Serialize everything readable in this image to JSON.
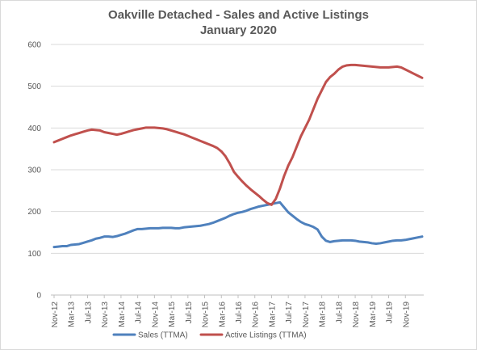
{
  "chart_data": {
    "type": "line",
    "title": "Oakville Detached - Sales and Active Listings",
    "subtitle": "January 2020",
    "xlabel": "",
    "ylabel": "",
    "ylim": [
      0,
      600
    ],
    "y_ticks": [
      0,
      100,
      200,
      300,
      400,
      500,
      600
    ],
    "x_tick_labels": [
      "Nov-12",
      "Mar-13",
      "Jul-13",
      "Nov-13",
      "Mar-14",
      "Jul-14",
      "Nov-14",
      "Mar-15",
      "Jul-15",
      "Nov-15",
      "Mar-16",
      "Jul-16",
      "Nov-16",
      "Mar-17",
      "Jul-17",
      "Nov-17",
      "Mar-18",
      "Jul-18",
      "Nov-18",
      "Mar-19",
      "Jul-19",
      "Nov-19"
    ],
    "grid": "horizontal",
    "legend_position": "bottom",
    "series": [
      {
        "name": "Sales (TTMA)",
        "color": "#4F81BD",
        "values": [
          115,
          116,
          117,
          117,
          120,
          121,
          122,
          125,
          128,
          131,
          135,
          137,
          140,
          140,
          139,
          141,
          144,
          147,
          151,
          155,
          158,
          158,
          159,
          160,
          160,
          160,
          161,
          161,
          161,
          160,
          160,
          162,
          163,
          164,
          165,
          166,
          168,
          170,
          173,
          177,
          181,
          185,
          190,
          194,
          197,
          199,
          202,
          206,
          209,
          212,
          214,
          216,
          218,
          220,
          222,
          210,
          198,
          190,
          182,
          175,
          170,
          167,
          163,
          157,
          140,
          130,
          127,
          129,
          130,
          131,
          131,
          131,
          130,
          128,
          127,
          126,
          124,
          123,
          124,
          126,
          128,
          130,
          131,
          131,
          132,
          134,
          136,
          138,
          140
        ],
        "labels": []
      },
      {
        "name": "Active Listings (TTMA)",
        "color": "#C0504D",
        "values": [
          366,
          370,
          374,
          378,
          382,
          385,
          388,
          391,
          394,
          396,
          395,
          394,
          390,
          388,
          386,
          384,
          386,
          389,
          392,
          395,
          397,
          399,
          401,
          401,
          401,
          400,
          399,
          397,
          394,
          391,
          388,
          385,
          381,
          377,
          373,
          369,
          365,
          361,
          357,
          352,
          344,
          332,
          315,
          295,
          283,
          272,
          262,
          253,
          245,
          237,
          228,
          220,
          216,
          230,
          255,
          285,
          310,
          330,
          355,
          380,
          400,
          420,
          445,
          470,
          490,
          510,
          522,
          530,
          540,
          547,
          550,
          551,
          551,
          550,
          549,
          548,
          547,
          546,
          545,
          545,
          545,
          546,
          547,
          545,
          540,
          535,
          530,
          525,
          520
        ]
      }
    ]
  }
}
